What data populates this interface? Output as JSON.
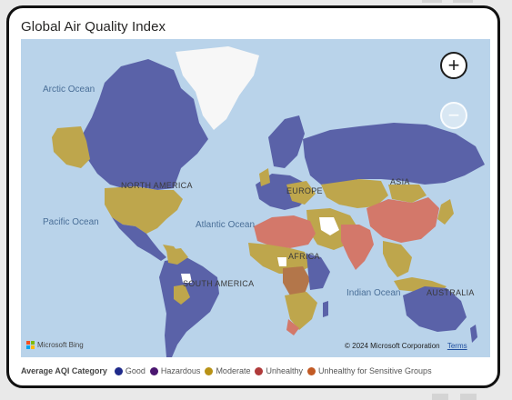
{
  "visual": {
    "title": "Global Air Quality Index"
  },
  "map": {
    "labels": {
      "arctic_ocean": "Arctic Ocean",
      "pacific_ocean": "Pacific Ocean",
      "atlantic_ocean": "Atlantic Ocean",
      "indian_ocean": "Indian Ocean",
      "north_america": "NORTH AMERICA",
      "south_america": "SOUTH AMERICA",
      "europe": "EUROPE",
      "asia": "ASIA",
      "africa": "AFRICA",
      "australia": "AUSTRALIA"
    },
    "zoom_in_icon": "plus-icon",
    "zoom_out_icon": "minus-icon",
    "attribution": {
      "brand": "Microsoft Bing",
      "copyright": "© 2024 Microsoft Corporation",
      "terms": "Terms"
    }
  },
  "legend": {
    "title": "Average AQI Category",
    "items": [
      {
        "label": "Good",
        "color": "#1f2a8a"
      },
      {
        "label": "Hazardous",
        "color": "#4b1670"
      },
      {
        "label": "Moderate",
        "color": "#b89216"
      },
      {
        "label": "Unhealthy",
        "color": "#b03a3a"
      },
      {
        "label": "Unhealthy for Sensitive Groups",
        "color": "#c25a24"
      }
    ]
  },
  "colors": {
    "ocean": "#b9d3ea",
    "good_fill": "#5a62a8",
    "moderate_fill": "#bea64c",
    "unhealthy_fill": "#d3786a",
    "sensitive_fill": "#b3764a",
    "no_data": "#ffffff"
  }
}
